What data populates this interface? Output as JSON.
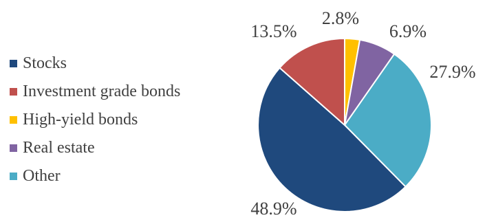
{
  "chart_data": {
    "type": "pie",
    "title": "",
    "legend_position": "left",
    "categories": [
      "Stocks",
      "Investment grade bonds",
      "High-yield bonds",
      "Real estate",
      "Other"
    ],
    "values": [
      48.9,
      13.5,
      2.8,
      6.9,
      27.9
    ],
    "value_labels": [
      "48.9%",
      "13.5%",
      "2.8%",
      "6.9%",
      "27.9%"
    ],
    "colors": [
      "#1f497d",
      "#c0504d",
      "#ffc000",
      "#8064a2",
      "#4bacc6"
    ],
    "slice_order_clockwise_from_top": [
      "High-yield bonds",
      "Real estate",
      "Other",
      "Stocks",
      "Investment grade bonds"
    ]
  }
}
